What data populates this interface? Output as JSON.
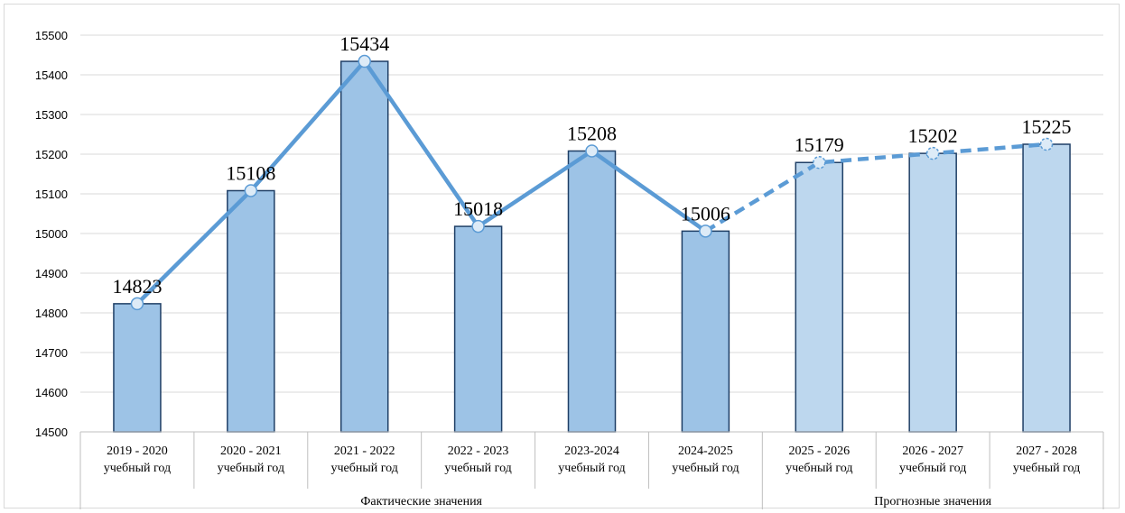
{
  "chart_data": {
    "type": "bar",
    "categories": [
      [
        "2019 - 2020",
        "учебный год"
      ],
      [
        "2020 - 2021",
        "учебный год"
      ],
      [
        "2021 - 2022",
        "учебный год"
      ],
      [
        "2022 - 2023",
        "учебный год"
      ],
      [
        "2023-2024",
        "учебный год"
      ],
      [
        "2024-2025",
        "учебный год"
      ],
      [
        "2025 - 2026",
        "учебный год"
      ],
      [
        "2026 - 2027",
        "учебный год"
      ],
      [
        "2027 - 2028",
        "учебный год"
      ]
    ],
    "values": [
      14823,
      15108,
      15434,
      15018,
      15208,
      15006,
      15179,
      15202,
      15225
    ],
    "groups": [
      {
        "label": "Фактические значения",
        "start": 0,
        "end": 5
      },
      {
        "label": "Прогнозные значения",
        "start": 6,
        "end": 8
      }
    ],
    "overlay_line": {
      "type": "line",
      "values": [
        14823,
        15108,
        15434,
        15018,
        15208,
        15006,
        15179,
        15202,
        15225
      ],
      "solid_through_index": 5,
      "dashed_from_index": 5
    },
    "ylim": [
      14500,
      15500
    ],
    "yticks": [
      14500,
      14600,
      14700,
      14800,
      14900,
      15000,
      15100,
      15200,
      15300,
      15400,
      15500
    ],
    "grid": true,
    "legend": "none",
    "title": "",
    "xlabel": "",
    "ylabel": ""
  },
  "colors": {
    "actual_bar_fill": "#9dc3e6",
    "forecast_bar_fill": "#bdd7ee",
    "bar_stroke": "#1f3f66",
    "line": "#5b9bd5",
    "marker_fill": "#ddebf7",
    "grid": "#d9d9d9",
    "axis": "#bfbfbf"
  }
}
